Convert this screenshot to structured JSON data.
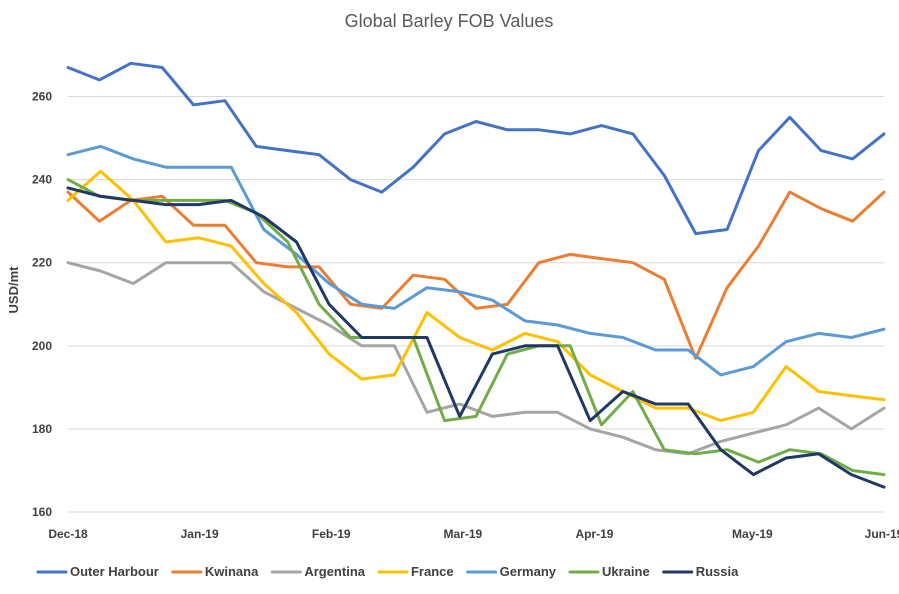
{
  "chart_data": {
    "type": "line",
    "title": "Global Barley FOB Values",
    "ylabel": "USD/mt",
    "xlabel": "",
    "ylim": [
      160,
      270
    ],
    "yticks": [
      160,
      180,
      200,
      220,
      240,
      260
    ],
    "grid": true,
    "legend_position": "bottom",
    "x_points": 32,
    "x_tick_labels": [
      {
        "label": "Dec-18",
        "index": 0
      },
      {
        "label": "Jan-19",
        "index": 5
      },
      {
        "label": "Feb-19",
        "index": 10
      },
      {
        "label": "Mar-19",
        "index": 15
      },
      {
        "label": "Apr-19",
        "index": 20
      },
      {
        "label": "May-19",
        "index": 26
      },
      {
        "label": "Jun-19",
        "index": 31
      }
    ],
    "series": [
      {
        "name": "Outer Harbour",
        "color": "#4472C4",
        "values": [
          267,
          264,
          268,
          267,
          258,
          259,
          248,
          247,
          246,
          240,
          237,
          243,
          251,
          254,
          252,
          252,
          251,
          253,
          251,
          241,
          227,
          228,
          247,
          255,
          247,
          245,
          251
        ]
      },
      {
        "name": "Kwinana",
        "color": "#ED7D31",
        "values": [
          237,
          230,
          235,
          236,
          229,
          229,
          220,
          219,
          219,
          210,
          209,
          217,
          216,
          209,
          210,
          220,
          222,
          221,
          220,
          216,
          197,
          214,
          224,
          237,
          233,
          230,
          237
        ]
      },
      {
        "name": "Argentina",
        "color": "#A5A5A5",
        "values": [
          220,
          218,
          215,
          220,
          220,
          220,
          213,
          209,
          205,
          200,
          200,
          184,
          186,
          183,
          184,
          184,
          180,
          178,
          175,
          174,
          177,
          179,
          181,
          185,
          180,
          185
        ]
      },
      {
        "name": "France",
        "color": "#FFC000",
        "values": [
          235,
          242,
          235,
          225,
          226,
          224,
          215,
          208,
          198,
          192,
          193,
          208,
          202,
          199,
          203,
          201,
          193,
          189,
          185,
          185,
          182,
          184,
          195,
          189,
          188,
          187
        ]
      },
      {
        "name": "Germany",
        "color": "#5B9BD5",
        "values": [
          246,
          248,
          245,
          243,
          243,
          243,
          228,
          222,
          215,
          210,
          209,
          214,
          213,
          211,
          206,
          205,
          203,
          202,
          199,
          199,
          193,
          195,
          201,
          203,
          202,
          204
        ]
      },
      {
        "name": "Ukraine",
        "color": "#70AD47",
        "values": [
          240,
          236,
          235,
          235,
          235,
          235,
          232,
          225,
          210,
          202,
          202,
          202,
          182,
          183,
          198,
          200,
          200,
          181,
          189,
          175,
          174,
          175,
          172,
          175,
          174,
          170,
          169
        ]
      },
      {
        "name": "Russia",
        "color": "#203864",
        "values": [
          238,
          236,
          235,
          234,
          234,
          235,
          231,
          225,
          210,
          202,
          202,
          202,
          183,
          198,
          200,
          200,
          182,
          189,
          186,
          186,
          175,
          169,
          173,
          174,
          169,
          166
        ]
      }
    ]
  }
}
